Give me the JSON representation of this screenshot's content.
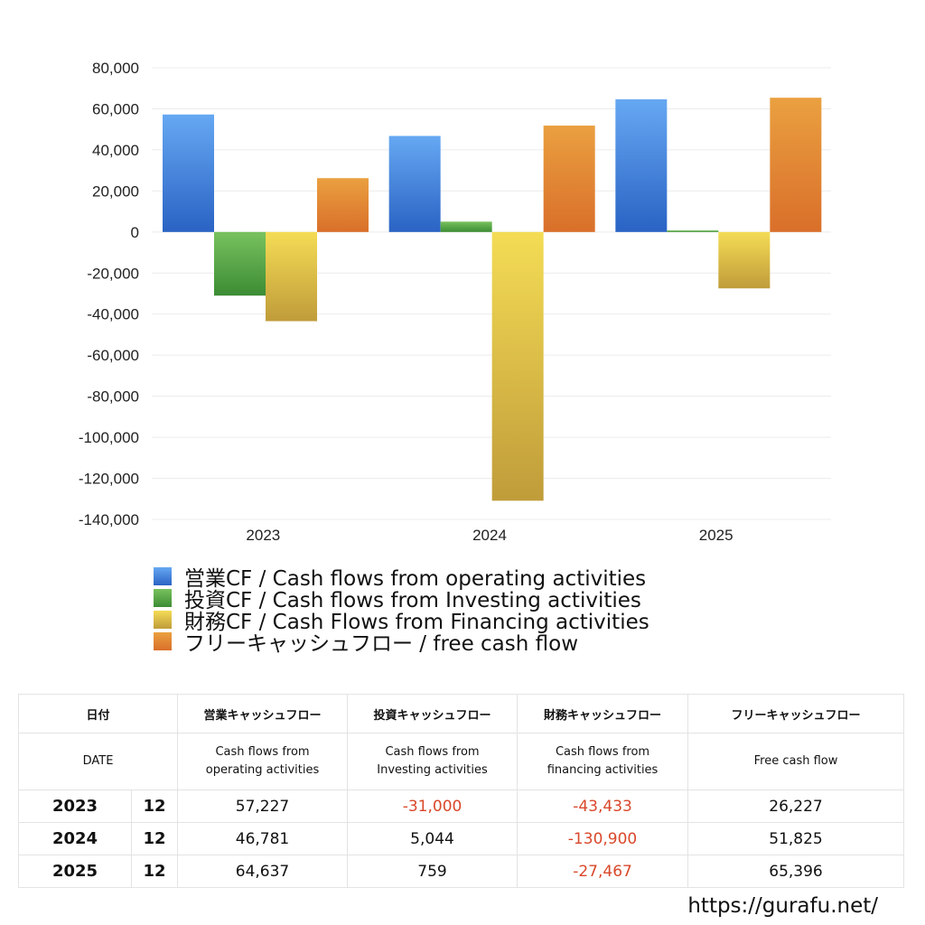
{
  "chart_data": {
    "type": "bar",
    "categories": [
      "2023",
      "2024",
      "2025"
    ],
    "ylim": [
      -140000,
      80000
    ],
    "yticks": [
      80000,
      60000,
      40000,
      20000,
      0,
      -20000,
      -40000,
      -60000,
      -80000,
      -100000,
      -120000,
      -140000
    ],
    "ytick_labels": [
      "80,000",
      "60,000",
      "40,000",
      "20,000",
      "0",
      "-20,000",
      "-40,000",
      "-60,000",
      "-80,000",
      "-100,000",
      "-120,000",
      "-140,000"
    ],
    "grid": true,
    "legend_position": "bottom",
    "series": [
      {
        "name": "営業CF / Cash flows from operating activities",
        "values": [
          57227,
          46781,
          64637
        ],
        "color_top": "#66a8f2",
        "color_bottom": "#2a63c4"
      },
      {
        "name": "投資CF / Cash flows from Investing activities",
        "values": [
          -31000,
          5044,
          759
        ],
        "color_top": "#78c25e",
        "color_bottom": "#3c8c34"
      },
      {
        "name": "財務CF / Cash Flows from Financing activities",
        "values": [
          -43433,
          -130900,
          -27467
        ],
        "color_top": "#f4dc55",
        "color_bottom": "#c09c3a"
      },
      {
        "name": "フリーキャッシュフロー / free cash flow",
        "values": [
          26227,
          51825,
          65396
        ],
        "color_top": "#eaa040",
        "color_bottom": "#d96f2a"
      }
    ]
  },
  "table": {
    "header1": {
      "date": "日付",
      "operating": "営業キャッシュフロー",
      "investing": "投資キャッシュフロー",
      "financing": "財務キャッシュフロー",
      "free": "フリーキャッシュフロー"
    },
    "header2": {
      "date": "DATE",
      "operating_l1": "Cash flows from",
      "operating_l2": "operating activities",
      "investing_l1": "Cash flows from",
      "investing_l2": "Investing activities",
      "financing_l1": "Cash flows from",
      "financing_l2": "financing activities",
      "free": "Free cash flow"
    },
    "rows": [
      {
        "year": "2023",
        "month": "12",
        "operating": "57,227",
        "investing": "-31,000",
        "financing": "-43,433",
        "free": "26,227"
      },
      {
        "year": "2024",
        "month": "12",
        "operating": "46,781",
        "investing": "5,044",
        "financing": "-130,900",
        "free": "51,825"
      },
      {
        "year": "2025",
        "month": "12",
        "operating": "64,637",
        "investing": "759",
        "financing": "-27,467",
        "free": "65,396"
      }
    ],
    "negative_color": "#d9482b"
  },
  "footer": {
    "url": "https://gurafu.net/"
  }
}
